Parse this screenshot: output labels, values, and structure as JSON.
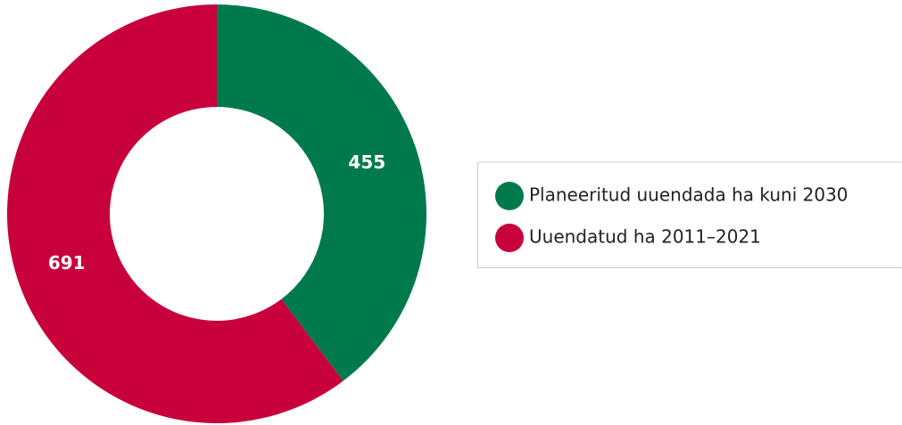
{
  "chart_data": {
    "type": "pie",
    "categories": [
      "Planeeritud uuendada ha kuni 2030",
      "Uuendatud ha 2011–2021"
    ],
    "values": [
      455,
      691
    ],
    "colors": [
      "#007a4d",
      "#c8003c"
    ],
    "donut": true,
    "legend": "right"
  }
}
